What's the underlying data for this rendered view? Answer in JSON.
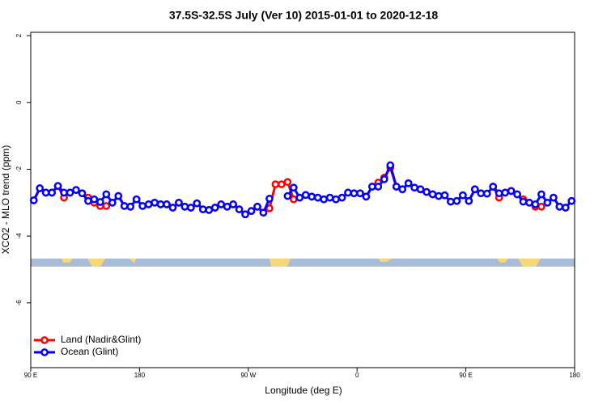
{
  "chart_data": {
    "type": "line",
    "title": "37.5S-32.5S July (Ver 10)   2015-01-01 to 2020-12-18",
    "x_label": "Longitude (deg E)",
    "y_label": "XCO2 - MLO trend (ppm)",
    "xlim": [
      90,
      540
    ],
    "ylim": [
      -7.94,
      2.1
    ],
    "xticks": [
      {
        "value": 90,
        "label": "90 E"
      },
      180,
      {
        "value": 270,
        "label": "90 W"
      },
      {
        "value": 360,
        "label": "0"
      },
      {
        "value": 450,
        "label": "90 E"
      },
      {
        "value": 540,
        "label": "180"
      }
    ],
    "yticks": [
      2,
      0,
      -2,
      -4,
      -6
    ],
    "grid": false,
    "legend": "lower left",
    "x": [
      92.5,
      97.5,
      102.5,
      107.5,
      112.5,
      117.5,
      122.5,
      127.5,
      132.5,
      137.5,
      142.5,
      147.5,
      152.5,
      157.5,
      162.5,
      167.5,
      172.5,
      177.5,
      182.5,
      187.5,
      192.5,
      197.5,
      202.5,
      207.5,
      212.5,
      217.5,
      222.5,
      227.5,
      232.5,
      237.5,
      242.5,
      247.5,
      252.5,
      257.5,
      262.5,
      267.5,
      272.5,
      277.5,
      282.5,
      287.5,
      292.5,
      297.5,
      302.5,
      307.5,
      312.5,
      317.5,
      322.5,
      327.5,
      332.5,
      337.5,
      342.5,
      347.5,
      352.5,
      357.5,
      362.5,
      367.5,
      372.5,
      377.5,
      382.5,
      387.5,
      392.5,
      397.5,
      402.5,
      407.5,
      412.5,
      417.5,
      422.5,
      427.5,
      432.5,
      437.5,
      442.5,
      447.5,
      452.5,
      457.5,
      462.5,
      467.5,
      472.5,
      477.5,
      482.5,
      487.5,
      492.5,
      497.5,
      502.5,
      507.5,
      512.5,
      517.5,
      522.5,
      527.5,
      532.5,
      537.5
    ],
    "series": [
      {
        "name": "Land (Nadir&Glint)",
        "color": "#ff0000",
        "values": [
          -2.93,
          -2.57,
          -2.7,
          -2.7,
          -2.5,
          -2.85,
          -2.7,
          -2.62,
          -2.72,
          -2.85,
          -3.0,
          -3.1,
          -3.1,
          -3.0,
          -2.8,
          -3.1,
          -3.12,
          -2.9,
          -3.1,
          -3.05,
          -3.0,
          -3.05,
          -3.05,
          -3.15,
          -3.0,
          -3.12,
          -3.15,
          -3.02,
          -3.2,
          -3.22,
          -3.15,
          -3.05,
          -3.12,
          -3.05,
          -3.2,
          -3.35,
          -3.25,
          -3.12,
          -3.3,
          -3.17,
          -2.45,
          -2.45,
          -2.38,
          -2.9,
          -2.85,
          -2.77,
          -2.82,
          -2.85,
          -2.9,
          -2.85,
          -2.9,
          -2.85,
          -2.7,
          -2.72,
          -2.72,
          -2.82,
          -2.52,
          -2.4,
          -2.25,
          -1.95,
          -2.52,
          -2.6,
          -2.42,
          -2.55,
          -2.6,
          -2.68,
          -2.75,
          -2.8,
          -2.78,
          -2.97,
          -2.95,
          -2.78,
          -2.95,
          -2.6,
          -2.72,
          -2.73,
          -2.52,
          -2.85,
          -2.7,
          -2.65,
          -2.75,
          -2.9,
          -3.0,
          -3.12,
          -3.12,
          -3.0,
          -2.85,
          -3.12,
          -3.15,
          -2.95
        ]
      },
      {
        "name": "Ocean (Glint)",
        "color": "#0000ff",
        "values": [
          -2.93,
          -2.57,
          -2.7,
          -2.7,
          -2.5,
          -2.7,
          -2.7,
          -2.62,
          -2.72,
          -2.95,
          -2.9,
          -2.98,
          -2.75,
          -3.0,
          -2.8,
          -3.1,
          -3.12,
          -2.9,
          -3.1,
          -3.05,
          -3.0,
          -3.05,
          -3.05,
          -3.15,
          -3.0,
          -3.12,
          -3.15,
          -3.02,
          -3.2,
          -3.22,
          -3.15,
          -3.05,
          -3.12,
          -3.05,
          -3.2,
          -3.35,
          -3.25,
          -3.12,
          -3.3,
          -2.88,
          null,
          null,
          -2.8,
          -2.55,
          -2.85,
          -2.77,
          -2.82,
          -2.85,
          -2.9,
          -2.85,
          -2.9,
          -2.85,
          -2.7,
          -2.72,
          -2.72,
          -2.82,
          -2.52,
          -2.52,
          -2.3,
          -1.88,
          -2.52,
          -2.6,
          -2.42,
          -2.55,
          -2.6,
          -2.68,
          -2.75,
          -2.8,
          -2.78,
          -2.97,
          -2.95,
          -2.78,
          -2.95,
          -2.6,
          -2.72,
          -2.73,
          -2.52,
          -2.72,
          -2.7,
          -2.65,
          -2.75,
          -2.97,
          -3.0,
          -3.05,
          -2.75,
          -3.0,
          -2.85,
          -3.12,
          -3.15,
          -2.95
        ]
      }
    ]
  }
}
